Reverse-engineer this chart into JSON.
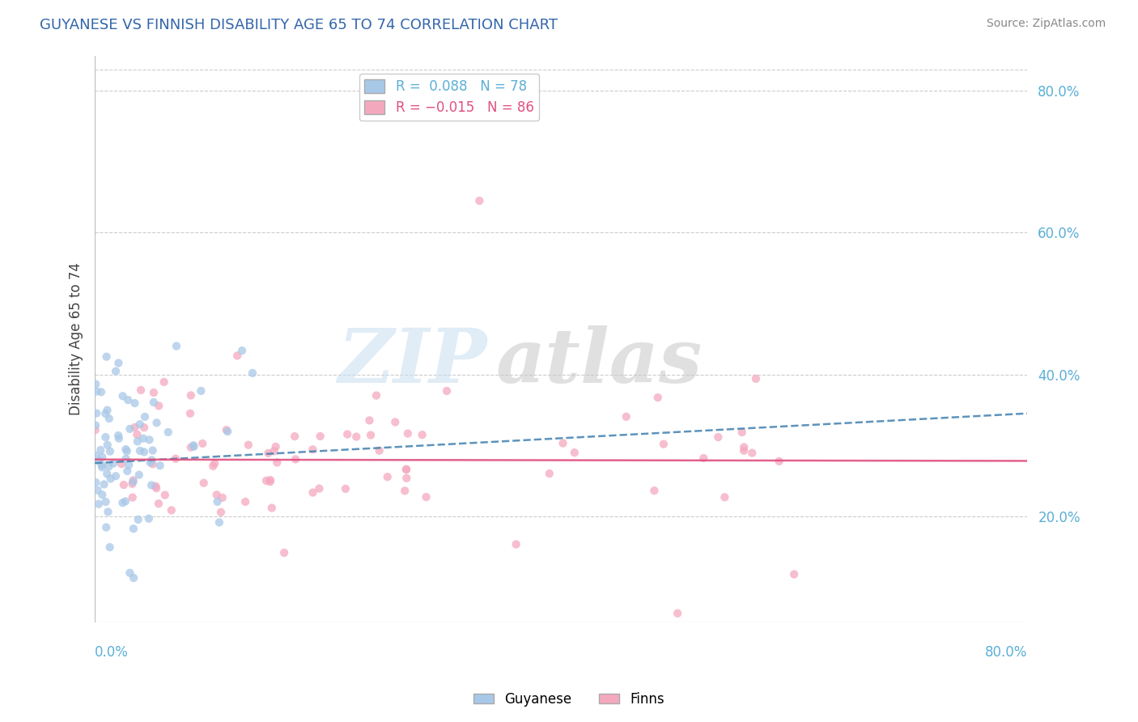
{
  "title": "GUYANESE VS FINNISH DISABILITY AGE 65 TO 74 CORRELATION CHART",
  "source": "Source: ZipAtlas.com",
  "xlabel_bottom_left": "0.0%",
  "xlabel_bottom_right": "80.0%",
  "ylabel": "Disability Age 65 to 74",
  "legend_labels": [
    "Guyanese",
    "Finns"
  ],
  "r_guyanese": 0.088,
  "n_guyanese": 78,
  "r_finns": -0.015,
  "n_finns": 86,
  "blue_color": "#A8C8E8",
  "pink_color": "#F4A8BE",
  "blue_line_color": "#4080B0",
  "pink_line_color": "#E05080",
  "xmin": 0.0,
  "xmax": 0.8,
  "ymin": 0.05,
  "ymax": 0.85,
  "right_yticks": [
    0.2,
    0.4,
    0.6,
    0.8
  ],
  "right_ytick_labels": [
    "20.0%",
    "40.0%",
    "60.0%",
    "80.0%"
  ],
  "watermark_zip": "ZIP",
  "watermark_atlas": "atlas",
  "background_color": "#ffffff"
}
